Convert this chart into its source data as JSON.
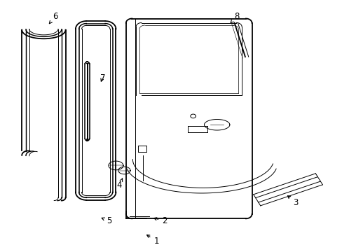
{
  "background_color": "#ffffff",
  "line_color": "#000000",
  "figsize": [
    4.89,
    3.6
  ],
  "dpi": 100,
  "lw_outer": 1.3,
  "lw_inner": 0.7,
  "label_fontsize": 8.5,
  "labels": {
    "1": {
      "text": [
        0.455,
        0.965
      ],
      "arrow": [
        0.42,
        0.935
      ]
    },
    "2": {
      "text": [
        0.48,
        0.885
      ],
      "arrow": [
        0.44,
        0.87
      ]
    },
    "3": {
      "text": [
        0.87,
        0.81
      ],
      "arrow": [
        0.84,
        0.775
      ]
    },
    "4": {
      "text": [
        0.345,
        0.74
      ],
      "arrow": [
        0.355,
        0.71
      ]
    },
    "5": {
      "text": [
        0.315,
        0.885
      ],
      "arrow": [
        0.285,
        0.868
      ]
    },
    "6": {
      "text": [
        0.155,
        0.055
      ],
      "arrow": [
        0.135,
        0.088
      ]
    },
    "7": {
      "text": [
        0.295,
        0.305
      ],
      "arrow": [
        0.288,
        0.33
      ]
    },
    "8": {
      "text": [
        0.695,
        0.055
      ],
      "arrow": [
        0.675,
        0.085
      ]
    }
  }
}
